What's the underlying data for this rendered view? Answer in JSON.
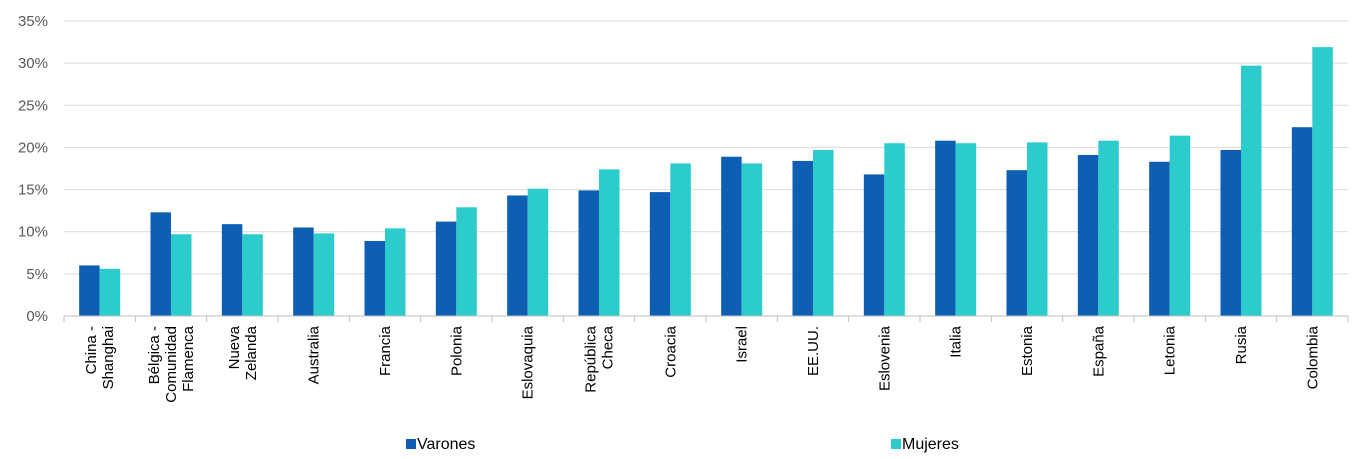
{
  "chart_data": {
    "type": "bar",
    "categories": [
      [
        "China -",
        "Shanghai"
      ],
      [
        "Bélgica -",
        "Comunidad",
        "Flamenca"
      ],
      [
        "Nueva",
        "Zelanda"
      ],
      [
        "Australia"
      ],
      [
        "Francia"
      ],
      [
        "Polonia"
      ],
      [
        "Eslovaquia"
      ],
      [
        "República",
        "Checa"
      ],
      [
        "Croacia"
      ],
      [
        "Israel"
      ],
      [
        "EE.UU."
      ],
      [
        "Eslovenia"
      ],
      [
        "Italia"
      ],
      [
        "Estonia"
      ],
      [
        "España"
      ],
      [
        "Letonia"
      ],
      [
        "Rusia"
      ],
      [
        "Colombia"
      ]
    ],
    "series": [
      {
        "name": "Varones",
        "color": "#0e5eb4",
        "values": [
          6.0,
          12.3,
          10.9,
          10.5,
          8.9,
          11.2,
          14.3,
          14.9,
          14.7,
          18.9,
          18.4,
          16.8,
          20.8,
          17.3,
          19.1,
          18.3,
          19.7,
          22.4
        ]
      },
      {
        "name": "Mujeres",
        "color": "#2dcccc",
        "values": [
          5.6,
          9.7,
          9.7,
          9.8,
          10.4,
          12.9,
          15.1,
          17.4,
          18.1,
          18.1,
          19.7,
          20.5,
          20.5,
          20.6,
          20.8,
          21.4,
          29.7,
          31.9
        ]
      }
    ],
    "ylim": [
      0,
      35
    ],
    "yticks": [
      "0%",
      "5%",
      "10%",
      "15%",
      "20%",
      "25%",
      "30%",
      "35%"
    ],
    "ytick_values": [
      0,
      5,
      10,
      15,
      20,
      25,
      30,
      35
    ],
    "grid": true,
    "legend_position": "bottom",
    "title": "",
    "xlabel": "",
    "ylabel": ""
  }
}
